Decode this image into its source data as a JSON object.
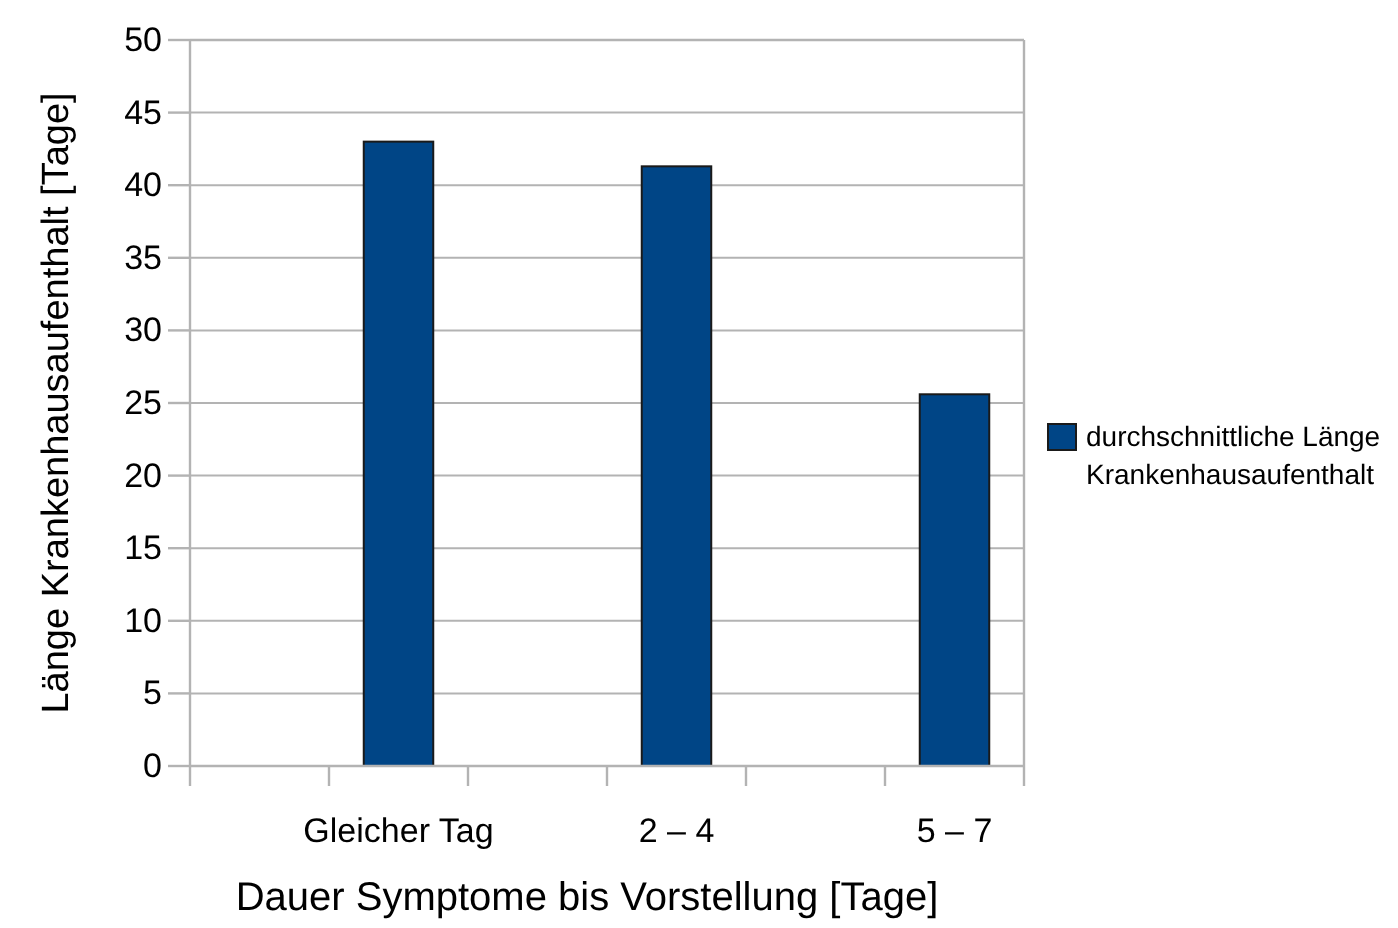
{
  "chart_data": {
    "type": "bar",
    "categories": [
      null,
      "Gleicher Tag",
      null,
      "2 – 4",
      null,
      "5 – 7"
    ],
    "series": [
      {
        "name": "durchschnittliche Länge Krankenhausaufenthalt",
        "color": "#004586",
        "values": [
          null,
          43,
          null,
          41.3,
          null,
          25.6
        ]
      }
    ],
    "xlabel": "Dauer Symptome bis Vorstellung [Tage]",
    "ylabel": "Länge Krankenhausaufenthalt [Tage]",
    "ylim": [
      0,
      50
    ],
    "yticks": [
      0,
      5,
      10,
      15,
      20,
      25,
      30,
      35,
      40,
      45,
      50
    ],
    "grid": "y",
    "legend": "right"
  }
}
